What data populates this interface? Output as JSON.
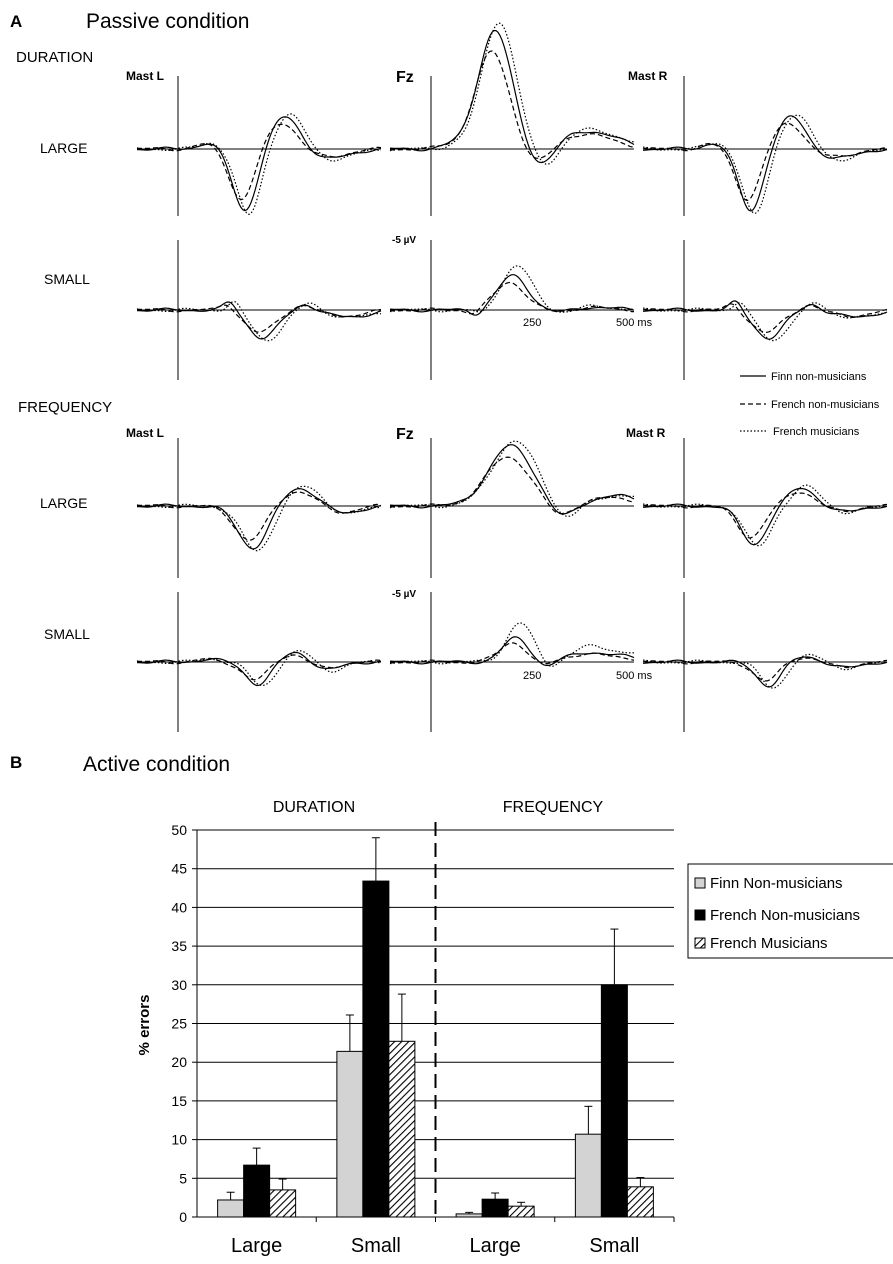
{
  "panel_a": {
    "letter": "A",
    "title": "Passive condition",
    "channels": [
      "Mast L",
      "Fz",
      "Mast R"
    ],
    "amplitude_label": "-5 µV",
    "time_ticks": [
      "250",
      "500 ms"
    ],
    "legend": [
      "Finn non-musicians",
      "French non-musicians",
      "French musicians"
    ],
    "sections": [
      {
        "name": "DURATION",
        "rows": [
          "LARGE",
          "SMALL"
        ]
      },
      {
        "name": "FREQUENCY",
        "rows": [
          "LARGE",
          "SMALL"
        ]
      }
    ]
  },
  "panel_b": {
    "letter": "B",
    "title": "Active condition"
  },
  "chart_data": [
    {
      "type": "line",
      "panel": "A",
      "title": "Passive condition",
      "x_ticks": [
        250,
        500
      ],
      "x_unit": "ms",
      "amplitude_scale": "-5 µV",
      "series": [
        "Finn non-musicians",
        "French non-musicians",
        "French musicians"
      ],
      "grid": false
    },
    {
      "type": "bar",
      "panel": "B",
      "title": "Active condition",
      "groups": [
        "DURATION",
        "FREQUENCY"
      ],
      "categories": [
        "Large",
        "Small",
        "Large",
        "Small"
      ],
      "ylabel": "% errors",
      "ylim": [
        0,
        50
      ],
      "yticks": [
        0,
        5,
        10,
        15,
        20,
        25,
        30,
        35,
        40,
        45,
        50
      ],
      "grid": true,
      "legend_position": "right",
      "series": [
        {
          "name": "Finn Non-musicians",
          "color": "#d3d3d3",
          "values": [
            2.2,
            21.4,
            0.4,
            10.7
          ],
          "errors": [
            1.0,
            4.7,
            0.2,
            3.6
          ]
        },
        {
          "name": "French Non-musicians",
          "color": "#000000",
          "values": [
            6.7,
            43.4,
            2.3,
            30.0
          ],
          "errors": [
            2.2,
            5.6,
            0.8,
            7.2
          ]
        },
        {
          "name": "French Musicians",
          "color": "hatched",
          "values": [
            3.5,
            22.7,
            1.4,
            3.9
          ],
          "errors": [
            1.4,
            6.1,
            0.5,
            1.2
          ]
        }
      ]
    }
  ]
}
